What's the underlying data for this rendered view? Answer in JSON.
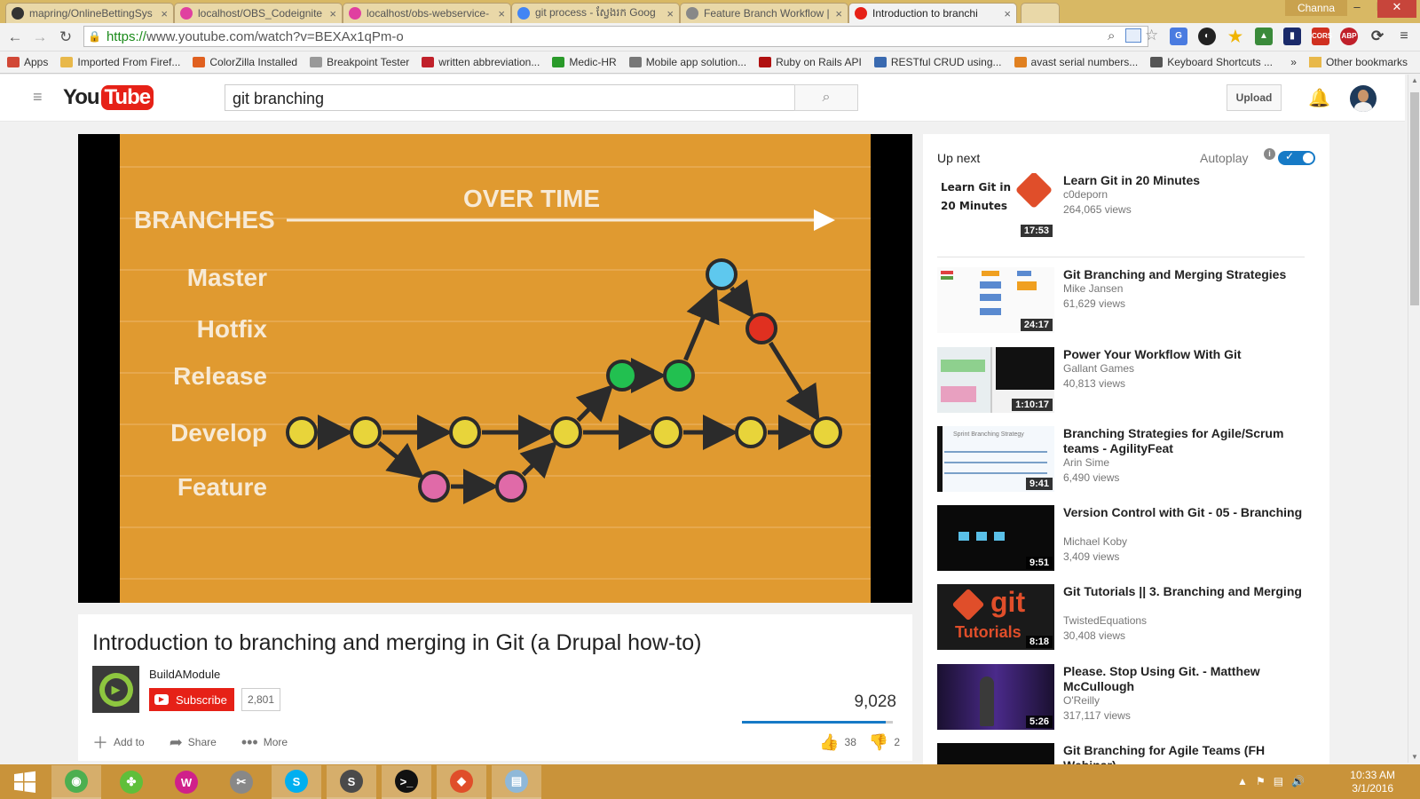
{
  "browser": {
    "tabs": [
      {
        "title": "mapring/OnlineBettingSys",
        "color": "#333333",
        "active": false
      },
      {
        "title": "localhost/OBS_Codeignite",
        "color": "#e040a0",
        "active": false
      },
      {
        "title": "localhost/obs-webservice-",
        "color": "#e040a0",
        "active": false
      },
      {
        "title": "git process - ស្វែងរក Goog",
        "color": "#4285f4",
        "active": false
      },
      {
        "title": "Feature Branch Workflow |",
        "color": "#888888",
        "active": false
      },
      {
        "title": "Introduction to branchi",
        "color": "#e62117",
        "active": true
      }
    ],
    "user": "Channa",
    "url_secure": "https://",
    "url_rest": "www.youtube.com/watch?v=BEXAx1qPm-o",
    "bookmarks": [
      {
        "label": "Apps",
        "color": "#d14836"
      },
      {
        "label": "Imported From Firef...",
        "color": "#e8b84a"
      },
      {
        "label": "ColorZilla Installed",
        "color": "#e06020"
      },
      {
        "label": "Breakpoint Tester",
        "color": "#999999"
      },
      {
        "label": "written abbreviation...",
        "color": "#c0202a"
      },
      {
        "label": "Medic-HR",
        "color": "#2a9a2a"
      },
      {
        "label": "Mobile app solution...",
        "color": "#777777"
      },
      {
        "label": "Ruby on Rails API",
        "color": "#b01010"
      },
      {
        "label": "RESTful CRUD using...",
        "color": "#3a6ab0"
      },
      {
        "label": "avast serial numbers...",
        "color": "#e08020"
      },
      {
        "label": "Keyboard Shortcuts ...",
        "color": "#555555"
      }
    ],
    "bookmarks_more": "»",
    "other_bookmarks": "Other bookmarks"
  },
  "youtube": {
    "logo_you": "You",
    "logo_tube": "Tube",
    "search_value": "git branching",
    "upload_label": "Upload"
  },
  "video": {
    "frame": {
      "over_time": "OVER TIME",
      "branches": "BRANCHES",
      "rows": [
        "Master",
        "Hotfix",
        "Release",
        "Develop",
        "Feature"
      ]
    },
    "title": "Introduction to branching and merging in Git (a Drupal how-to)",
    "channel": "BuildAModule",
    "subscribe_label": "Subscribe",
    "subscriber_count": "2,801",
    "view_count": "9,028",
    "like_ratio": 0.95,
    "actions": {
      "add": "Add to",
      "share": "Share",
      "more": "More"
    },
    "likes": "38",
    "dislikes": "2"
  },
  "sidebar": {
    "up_next": "Up next",
    "autoplay": "Autoplay",
    "autoplay_on": true,
    "items": [
      {
        "title": "Learn Git in 20 Minutes",
        "channel": "c0deporn",
        "views": "264,065 views",
        "duration": "17:53",
        "thumb": "learn",
        "thumb_text": "Learn Git in 20 Minutes"
      },
      {
        "title": "Git Branching and Merging Strategies",
        "channel": "Mike Jansen",
        "views": "61,629 views",
        "duration": "24:17",
        "thumb": "diagram"
      },
      {
        "title": "Power Your Workflow With Git",
        "channel": "Gallant Games",
        "views": "40,813 views",
        "duration": "1:10:17",
        "thumb": "split"
      },
      {
        "title": "Branching Strategies for Agile/Scrum teams - AgilityFeat",
        "channel": "Arin Sime",
        "views": "6,490 views",
        "duration": "9:41",
        "thumb": "sprint",
        "thumb_text": "Sprint Branching Strategy"
      },
      {
        "title": "Version Control with Git - 05 - Branching",
        "channel": "Michael Koby",
        "views": "3,409 views",
        "duration": "9:51",
        "thumb": "dark"
      },
      {
        "title": "Git Tutorials || 3. Branching and Merging",
        "channel": "TwistedEquations",
        "views": "30,408 views",
        "duration": "8:18",
        "thumb": "gitlogo",
        "thumb_text": "git",
        "thumb_text2": "Tutorials"
      },
      {
        "title": "Please. Stop Using Git. - Matthew McCullough",
        "channel": "O'Reilly",
        "views": "317,117 views",
        "duration": "5:26",
        "thumb": "stage"
      },
      {
        "title": "Git Branching for Agile Teams (FH Webinar)",
        "channel": "",
        "views": "",
        "duration": "",
        "thumb": "dark"
      }
    ]
  },
  "taskbar": {
    "apps": [
      {
        "icon": "chrome-icon",
        "color": "#4caf50",
        "glyph": "◉",
        "active": true
      },
      {
        "icon": "clover-icon",
        "color": "#5fbf3a",
        "glyph": "✤",
        "active": false
      },
      {
        "icon": "wamp-icon",
        "color": "#d0208a",
        "glyph": "W",
        "active": false
      },
      {
        "icon": "snipping-icon",
        "color": "#888888",
        "glyph": "✂",
        "active": false
      },
      {
        "icon": "skype-icon",
        "color": "#00aff0",
        "glyph": "S",
        "active": true
      },
      {
        "icon": "sublime-icon",
        "color": "#4a4a4a",
        "glyph": "S",
        "active": true
      },
      {
        "icon": "cmd-icon",
        "color": "#111111",
        "glyph": ">_",
        "active": true
      },
      {
        "icon": "git-icon",
        "color": "#e04e2a",
        "glyph": "◆",
        "active": true
      },
      {
        "icon": "notepad-icon",
        "color": "#8fb8d8",
        "glyph": "▤",
        "active": true
      }
    ],
    "time": "10:33 AM",
    "date": "3/1/2016"
  }
}
